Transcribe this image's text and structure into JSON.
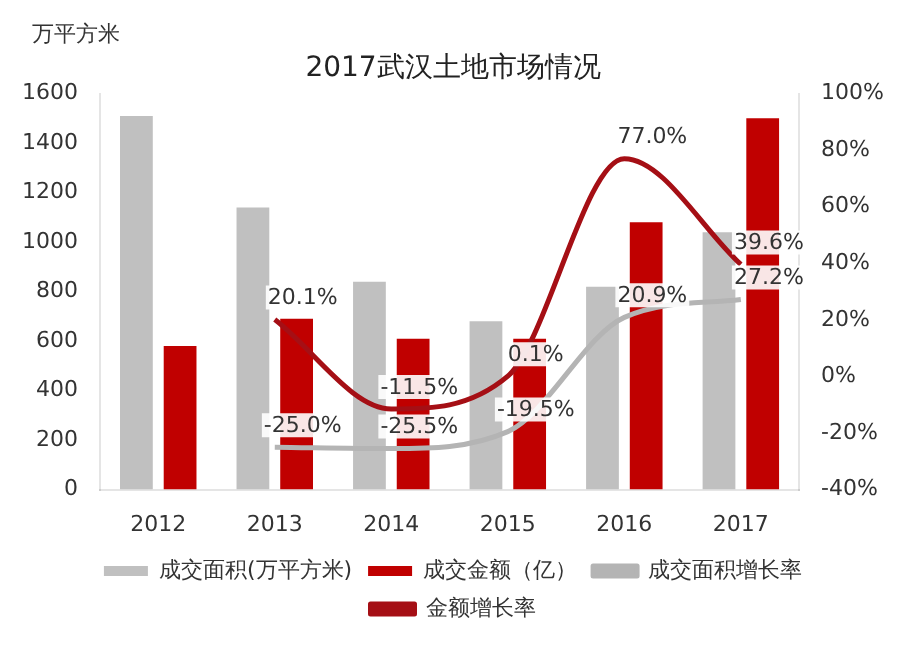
{
  "chart_data": {
    "type": "bar",
    "title": "2017武汉土地市场情况",
    "ylabel": "万平方米",
    "categories": [
      "2012",
      "2013",
      "2014",
      "2015",
      "2016",
      "2017"
    ],
    "series": [
      {
        "name": "成交面积(万平方米)",
        "color": "#c0c0c0",
        "values": [
          1510,
          1140,
          840,
          680,
          820,
          1040
        ]
      },
      {
        "name": "成交金额（亿）",
        "color": "#c00000",
        "values": [
          580,
          690,
          610,
          610,
          1080,
          1500
        ]
      },
      {
        "name": "成交面积增长率",
        "type": "line",
        "axis": "y2",
        "color": "#b4b4b4",
        "values": [
          null,
          -25.0,
          -25.5,
          -19.5,
          20.9,
          27.2
        ],
        "value_labels": [
          null,
          "-25.0%",
          "-25.5%",
          "-19.5%",
          "20.9%",
          "27.2%"
        ]
      },
      {
        "name": "金额增长率",
        "type": "line",
        "axis": "y2",
        "color": "#a50f15",
        "values": [
          null,
          20.1,
          -11.5,
          0.1,
          77.0,
          39.6
        ],
        "value_labels": [
          null,
          "20.1%",
          "-11.5%",
          "0.1%",
          "77.0%",
          "39.6%"
        ]
      }
    ],
    "ylim": [
      0,
      1600
    ],
    "yticks": [
      0,
      200,
      400,
      600,
      800,
      1000,
      1200,
      1400,
      1600
    ],
    "y2lim": [
      -40,
      100
    ],
    "y2ticks": [
      {
        "value": -40,
        "label": "-40%"
      },
      {
        "value": -20,
        "label": "-20%"
      },
      {
        "value": 0,
        "label": "0%"
      },
      {
        "value": 20,
        "label": "20%"
      },
      {
        "value": 40,
        "label": "40%"
      },
      {
        "value": 60,
        "label": "60%"
      },
      {
        "value": 80,
        "label": "80%"
      },
      {
        "value": 100,
        "label": "100%"
      }
    ],
    "grid": false,
    "legend": "bottom",
    "marker": "none",
    "line_style": "solid"
  }
}
